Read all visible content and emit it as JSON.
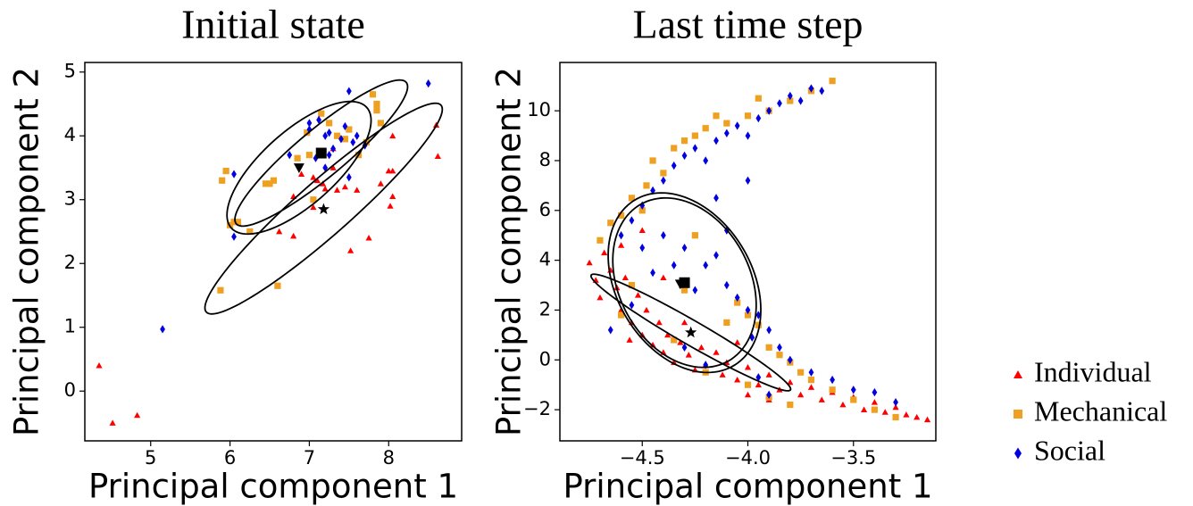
{
  "chart_data": [
    {
      "type": "scatter",
      "title": "Initial state",
      "xlabel": "Principal component 1",
      "ylabel": "Principal component 2",
      "xlim": [
        4.17,
        8.92
      ],
      "ylim": [
        -0.78,
        5.15
      ],
      "xticks": [
        5,
        6,
        7,
        8
      ],
      "yticks": [
        0,
        1,
        2,
        3,
        4,
        5
      ],
      "series": [
        {
          "color": "#ff0000",
          "marker": "triangle",
          "x": [
            4.35,
            4.52,
            4.83,
            7.17,
            7.2,
            7.05,
            7.35,
            7.45,
            7.6,
            7.3,
            7.9,
            8.0,
            8.05,
            8.05,
            8.02,
            8.05,
            8.6,
            8.62,
            7.75,
            7.52,
            6.8,
            6.62,
            7.05,
            6.9,
            7.3,
            7.1,
            6.8
          ],
          "values": [
            0.4,
            -0.5,
            -0.38,
            3.25,
            3.17,
            3.35,
            3.15,
            3.2,
            3.15,
            3.5,
            3.25,
            3.45,
            3.45,
            3.05,
            2.9,
            4.0,
            4.17,
            3.68,
            2.4,
            2.2,
            2.43,
            2.5,
            2.88,
            3.4,
            3.8,
            3.3,
            3.05
          ]
        },
        {
          "color": "#f0a020",
          "marker": "square",
          "x": [
            5.9,
            5.95,
            6.0,
            6.05,
            6.1,
            5.88,
            6.6,
            6.25,
            6.45,
            6.5,
            6.55,
            6.85,
            7.0,
            7.05,
            7.35,
            7.45,
            7.62,
            7.8,
            7.85,
            7.85,
            7.9,
            7.15,
            7.25,
            6.97,
            7.72,
            7.5
          ],
          "values": [
            3.3,
            3.45,
            2.6,
            2.65,
            2.65,
            1.58,
            1.65,
            2.5,
            3.25,
            3.25,
            3.3,
            3.65,
            3.7,
            3.0,
            4.0,
            3.95,
            3.7,
            4.65,
            4.4,
            4.5,
            4.2,
            4.35,
            4.2,
            4.05,
            3.9,
            4.1
          ]
        },
        {
          "color": "#0000e0",
          "marker": "diamond",
          "x": [
            5.15,
            6.05,
            6.05,
            6.75,
            7.0,
            7.0,
            7.12,
            7.2,
            7.25,
            7.3,
            7.5,
            7.6,
            7.7,
            7.45,
            7.55,
            7.2,
            8.5,
            7.25,
            7.4,
            7.08,
            7.5
          ],
          "values": [
            0.97,
            2.42,
            3.4,
            3.7,
            4.2,
            4.1,
            4.25,
            4.0,
            4.05,
            3.8,
            4.7,
            4.0,
            3.85,
            4.15,
            3.9,
            3.5,
            4.82,
            3.7,
            3.95,
            3.65,
            3.35
          ]
        }
      ],
      "ellipses": [
        {
          "center": [
            7.18,
            2.86
          ],
          "axis1": [
            1.48,
            1.62
          ],
          "axis2": [
            0.22,
            -0.32
          ]
        },
        {
          "center": [
            7.15,
            3.73
          ],
          "axis1": [
            1.07,
            1.11
          ],
          "axis2": [
            0.2,
            -0.28
          ]
        },
        {
          "center": [
            6.87,
            3.5
          ],
          "axis1": [
            0.85,
            0.95
          ],
          "axis2": [
            0.32,
            -0.42
          ]
        }
      ],
      "centroids": [
        {
          "x": 7.15,
          "y": 3.73,
          "marker": "square"
        },
        {
          "x": 6.87,
          "y": 3.5,
          "marker": "triangle-down"
        },
        {
          "x": 7.18,
          "y": 2.85,
          "marker": "star"
        }
      ]
    },
    {
      "type": "scatter",
      "title": "Last time step",
      "xlabel": "Principal component 1",
      "ylabel": "Principal component 2",
      "xlim": [
        -4.89,
        -3.11
      ],
      "ylim": [
        -3.25,
        11.94
      ],
      "xticks": [
        {
          "value": -4.5,
          "label": "−4.5"
        },
        {
          "value": -4.0,
          "label": "−4.0"
        },
        {
          "value": -3.5,
          "label": "−3.5"
        }
      ],
      "yticks": [
        {
          "value": -2,
          "label": "−2"
        },
        0,
        2,
        4,
        6,
        8,
        10
      ],
      "legend_position": "outside right",
      "series": [
        {
          "name": "Individual",
          "color": "#ff0000",
          "marker": "triangle",
          "x": [
            -4.75,
            -4.72,
            -4.7,
            -4.68,
            -4.65,
            -4.62,
            -4.6,
            -4.58,
            -4.55,
            -4.52,
            -4.5,
            -4.48,
            -4.45,
            -4.42,
            -4.4,
            -4.38,
            -4.35,
            -4.32,
            -4.3,
            -4.28,
            -4.25,
            -4.22,
            -4.2,
            -4.15,
            -4.12,
            -4.1,
            -4.05,
            -4.0,
            -3.95,
            -3.9,
            -3.85,
            -3.8,
            -3.75,
            -3.7,
            -3.65,
            -3.6,
            -3.55,
            -3.5,
            -3.45,
            -3.4,
            -3.35,
            -3.3,
            -3.25,
            -3.2,
            -3.15,
            -4.6,
            -4.5,
            -4.4,
            -4.05,
            -4.56,
            -4.0,
            -3.9
          ],
          "values": [
            3.9,
            3.2,
            2.5,
            4.3,
            3.6,
            2.9,
            2.0,
            3.3,
            1.5,
            2.6,
            1.0,
            2.0,
            0.6,
            1.5,
            0.3,
            1.0,
            -0.1,
            0.7,
            1.5,
            0.2,
            -0.4,
            0.5,
            -0.2,
            0.3,
            -0.6,
            -0.1,
            -0.8,
            -0.3,
            -1.0,
            -0.6,
            -1.2,
            -0.9,
            -1.4,
            -1.1,
            -1.6,
            -1.3,
            -1.8,
            -1.5,
            -2.0,
            -1.7,
            -2.1,
            -1.9,
            -2.2,
            -2.3,
            -2.4,
            4.6,
            5.2,
            3.3,
            0.7,
            0.8,
            -1.4,
            -1.6
          ]
        },
        {
          "name": "Mechanical",
          "color": "#f0a020",
          "marker": "square",
          "x": [
            -4.6,
            -4.55,
            -4.48,
            -4.45,
            -4.4,
            -4.35,
            -4.3,
            -4.25,
            -4.2,
            -4.1,
            -4.0,
            -3.9,
            -3.8,
            -3.7,
            -3.6,
            -4.15,
            -3.95,
            -4.7,
            -4.65,
            -4.5,
            -4.55,
            -4.6,
            -4.35,
            -4.1,
            -4.0,
            -3.95,
            -3.9,
            -3.85,
            -3.8,
            -3.75,
            -3.7,
            -3.6,
            -3.5,
            -3.4,
            -3.3,
            -4.0,
            -3.9,
            -3.8,
            -4.2,
            -4.3,
            -4.05,
            -4.25
          ],
          "values": [
            5.8,
            6.5,
            7.0,
            8.0,
            7.5,
            8.5,
            8.8,
            9.0,
            9.3,
            9.5,
            9.8,
            10.0,
            10.4,
            10.8,
            11.2,
            9.8,
            10.5,
            4.8,
            5.5,
            6.0,
            3.0,
            1.8,
            0.8,
            1.5,
            1.8,
            1.4,
            0.5,
            0.2,
            -0.1,
            -0.5,
            -0.8,
            -1.2,
            -1.6,
            -2.0,
            -2.3,
            -1.0,
            -1.5,
            -1.8,
            -0.5,
            2.8,
            2.3,
            5.0
          ]
        },
        {
          "name": "Social",
          "color": "#0000e0",
          "marker": "diamond",
          "x": [
            -4.6,
            -4.55,
            -4.5,
            -4.45,
            -4.4,
            -4.35,
            -4.3,
            -4.25,
            -4.2,
            -4.15,
            -4.1,
            -4.05,
            -4.0,
            -3.95,
            -3.9,
            -3.85,
            -3.8,
            -3.75,
            -3.7,
            -3.65,
            -4.5,
            -4.4,
            -4.3,
            -4.2,
            -4.15,
            -4.1,
            -4.05,
            -4.0,
            -3.95,
            -3.9,
            -3.85,
            -3.8,
            -3.7,
            -3.6,
            -3.5,
            -3.4,
            -3.3,
            -4.35,
            -4.45,
            -4.25,
            -4.65,
            -4.55,
            -4.3,
            -4.2,
            -3.95,
            -4.1,
            -4.15,
            -4.0,
            -3.98,
            -3.9
          ],
          "values": [
            5.0,
            5.6,
            6.2,
            6.8,
            7.2,
            7.8,
            8.2,
            8.5,
            8.0,
            8.8,
            9.1,
            9.4,
            9.0,
            9.7,
            10.0,
            10.3,
            10.6,
            10.4,
            10.9,
            10.8,
            4.5,
            5.0,
            4.5,
            3.8,
            4.2,
            3.0,
            2.5,
            2.0,
            1.8,
            1.2,
            0.5,
            0.0,
            -0.5,
            -0.8,
            -1.2,
            -1.3,
            -1.7,
            3.8,
            3.5,
            2.8,
            1.2,
            2.2,
            0.5,
            -0.2,
            -0.7,
            5.2,
            6.5,
            7.2,
            0.9,
            -1.4
          ]
        }
      ],
      "ellipses": [
        {
          "center": [
            -4.3,
            3.1
          ],
          "axis1": [
            -0.09,
            3.6
          ],
          "axis2": [
            0.35,
            -0.2
          ]
        },
        {
          "center": [
            -4.3,
            3.1
          ],
          "axis1": [
            -0.08,
            3.4
          ],
          "axis2": [
            0.33,
            -0.1
          ]
        },
        {
          "center": [
            -4.27,
            1.1
          ],
          "axis1": [
            0.47,
            -2.2
          ],
          "axis2": [
            -0.05,
            0.8
          ]
        }
      ],
      "centroids": [
        {
          "x": -4.3,
          "y": 3.1,
          "marker": "square"
        },
        {
          "x": -4.32,
          "y": 3.05,
          "marker": "triangle-down"
        },
        {
          "x": -4.27,
          "y": 1.1,
          "marker": "star"
        }
      ]
    }
  ]
}
